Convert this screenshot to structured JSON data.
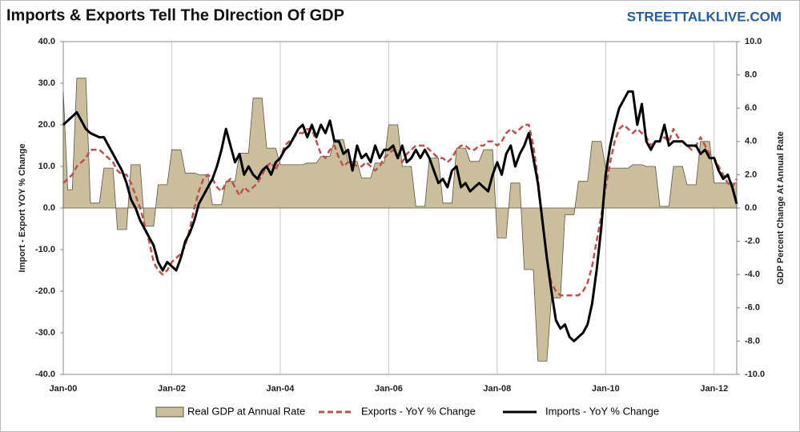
{
  "chart_data": {
    "type": "line",
    "title": "Imports & Exports Tell The DIrection Of GDP",
    "watermark": "STREETTALKLIVE.COM",
    "ylabel": "Import - Export YOY % Change",
    "y2label": "GDP Percent Change At Annual Rate",
    "grid": "x",
    "categories": [
      "Jan-00",
      null,
      null,
      null,
      null,
      null,
      null,
      null,
      null,
      null,
      null,
      null,
      null,
      null,
      null,
      null,
      null,
      null,
      null,
      null,
      null,
      null,
      null,
      null,
      "Jan-02",
      null,
      null,
      null,
      null,
      null,
      null,
      null,
      null,
      null,
      null,
      null,
      null,
      null,
      null,
      null,
      null,
      null,
      null,
      null,
      null,
      null,
      null,
      null,
      "Jan-04",
      null,
      null,
      null,
      null,
      null,
      null,
      null,
      null,
      null,
      null,
      null,
      null,
      null,
      null,
      null,
      null,
      null,
      null,
      null,
      null,
      null,
      null,
      null,
      "Jan-06",
      null,
      null,
      null,
      null,
      null,
      null,
      null,
      null,
      null,
      null,
      null,
      null,
      null,
      null,
      null,
      null,
      null,
      null,
      null,
      null,
      null,
      null,
      null,
      "Jan-08",
      null,
      null,
      null,
      null,
      null,
      null,
      null,
      null,
      null,
      null,
      null,
      null,
      null,
      null,
      null,
      null,
      null,
      null,
      null,
      null,
      null,
      null,
      null,
      "Jan-10",
      null,
      null,
      null,
      null,
      null,
      null,
      null,
      null,
      null,
      null,
      null,
      null,
      null,
      null,
      null,
      null,
      null,
      null,
      null,
      null,
      null,
      null,
      null,
      "Jan-12",
      null,
      null,
      null,
      null,
      null
    ],
    "ylim": [
      -40,
      40
    ],
    "yticks": [
      {
        "value": 40,
        "label": "40.0"
      },
      {
        "value": 30,
        "label": "30.0"
      },
      {
        "value": 20,
        "label": "20.0"
      },
      {
        "value": 10,
        "label": "10.0"
      },
      {
        "value": 0,
        "label": "0.0"
      },
      {
        "value": -10,
        "label": "-10.0"
      },
      {
        "value": -20,
        "label": "-20.0"
      },
      {
        "value": -30,
        "label": "-30.0"
      },
      {
        "value": -40,
        "label": "-40.0"
      }
    ],
    "y2lim": [
      -10,
      10
    ],
    "y2ticks": [
      {
        "value": 10,
        "label": "10.0"
      },
      {
        "value": 8,
        "label": "8.0"
      },
      {
        "value": 6,
        "label": "6.0"
      },
      {
        "value": 4,
        "label": "4.0"
      },
      {
        "value": 2,
        "label": "2.0"
      },
      {
        "value": 0,
        "label": "0.0"
      },
      {
        "value": -2,
        "label": "-2.0"
      },
      {
        "value": -4,
        "label": "-4.0"
      },
      {
        "value": -6,
        "label": "-6.0"
      },
      {
        "value": -8,
        "label": "-8.0"
      },
      {
        "value": -10,
        "label": "-10.0"
      }
    ],
    "series": [
      {
        "name": "Real GDP at Annual Rate",
        "type": "area",
        "axis": "y2",
        "color": "#cbbf9b",
        "values": [
          7.0,
          1.1,
          1.1,
          7.8,
          7.8,
          7.8,
          0.3,
          0.3,
          0.3,
          2.4,
          2.4,
          2.4,
          -1.3,
          -1.3,
          -1.3,
          2.6,
          2.6,
          2.6,
          -1.1,
          -1.1,
          -1.1,
          1.4,
          1.4,
          1.4,
          3.5,
          3.5,
          3.5,
          2.1,
          2.1,
          2.1,
          2.0,
          2.0,
          2.0,
          0.2,
          0.2,
          0.2,
          1.6,
          1.6,
          1.6,
          3.3,
          3.3,
          3.3,
          6.6,
          6.6,
          6.6,
          3.6,
          3.6,
          3.6,
          2.6,
          2.6,
          2.6,
          2.6,
          2.6,
          2.6,
          2.7,
          2.7,
          2.7,
          3.1,
          3.1,
          3.1,
          4.1,
          4.1,
          4.1,
          2.8,
          2.8,
          2.8,
          1.8,
          1.8,
          1.8,
          2.7,
          2.7,
          2.7,
          5.0,
          5.0,
          5.0,
          2.5,
          2.5,
          2.5,
          0.1,
          0.1,
          0.1,
          3.0,
          3.0,
          3.0,
          0.3,
          0.3,
          0.3,
          3.6,
          3.6,
          3.6,
          2.8,
          2.8,
          2.8,
          3.5,
          3.5,
          3.5,
          -1.8,
          -1.8,
          -1.8,
          1.5,
          1.5,
          1.5,
          -3.7,
          -3.7,
          -3.7,
          -9.2,
          -9.2,
          -9.2,
          -5.4,
          -5.4,
          -5.4,
          -0.4,
          -0.4,
          -0.4,
          1.6,
          1.6,
          1.6,
          4.0,
          4.0,
          4.0,
          2.4,
          2.4,
          2.4,
          2.4,
          2.4,
          2.4,
          2.6,
          2.6,
          2.6,
          2.5,
          2.5,
          2.5,
          0.1,
          0.1,
          0.1,
          2.5,
          2.5,
          2.5,
          1.4,
          1.4,
          1.4,
          4.0,
          4.0,
          4.0,
          1.5,
          1.5,
          1.5,
          1.5,
          1.5,
          1.5
        ]
      },
      {
        "name": "Exports - YoY % Change",
        "type": "line",
        "dash": true,
        "color": "#c0504d",
        "values": [
          6,
          7,
          8,
          10,
          11,
          12,
          14,
          14,
          14,
          13,
          12,
          11,
          9,
          8,
          8,
          6,
          3,
          0,
          -4,
          -8,
          -13,
          -15,
          -16,
          -15,
          -13,
          -12,
          -11,
          -9,
          -5,
          0,
          4,
          7,
          8,
          7,
          5,
          4,
          6,
          7,
          5,
          3,
          5,
          4,
          5,
          6,
          8,
          10,
          11,
          9,
          12,
          15,
          16,
          17,
          18,
          18,
          19,
          19,
          16,
          13,
          12,
          14,
          15,
          12,
          10,
          11,
          11,
          10,
          10,
          11,
          10,
          9,
          10,
          12,
          13,
          14,
          12,
          11,
          13,
          14,
          15,
          15,
          15,
          14,
          13,
          12,
          12,
          11,
          12,
          14,
          15,
          15,
          14,
          14,
          15,
          15,
          16,
          16,
          15,
          16,
          18,
          19,
          18,
          19,
          20,
          20,
          15,
          7,
          -3,
          -12,
          -18,
          -20,
          -21,
          -21,
          -21,
          -21,
          -21,
          -20,
          -18,
          -14,
          -8,
          -2,
          5,
          11,
          16,
          19,
          20,
          19,
          18,
          19,
          18,
          17,
          15,
          16,
          16,
          17,
          16,
          19,
          17,
          16,
          15,
          14,
          15,
          17,
          15,
          13,
          12,
          10,
          8,
          6,
          5,
          7
        ]
      },
      {
        "name": "Imports - YoY % Change",
        "type": "line",
        "dash": false,
        "color": "#000000",
        "values": [
          20,
          21,
          22,
          23,
          21,
          19,
          18,
          17.5,
          17,
          17,
          15,
          13,
          11,
          9,
          6,
          2,
          0,
          -3,
          -5,
          -7,
          -9,
          -13,
          -15,
          -13,
          -14,
          -15,
          -12,
          -8,
          -6,
          -3,
          1,
          3,
          5,
          7,
          10,
          14,
          19,
          15,
          11,
          13,
          8,
          10,
          8,
          7,
          9,
          10,
          8,
          11,
          12,
          14,
          15,
          17,
          19,
          20,
          17,
          20,
          17,
          20,
          18,
          21,
          16,
          16,
          13,
          14,
          9,
          15,
          12,
          13,
          11,
          15,
          12,
          14,
          14,
          15,
          12,
          15,
          11,
          12,
          14,
          12,
          14,
          12,
          9,
          6,
          7,
          5,
          9,
          10,
          5,
          6,
          4,
          5,
          6,
          5,
          4,
          8,
          11,
          8,
          13,
          15,
          10,
          13,
          15,
          18,
          12,
          6,
          -3,
          -12,
          -20,
          -27,
          -29,
          -28,
          -31,
          -32,
          -31,
          -30,
          -28,
          -23,
          -15,
          -5,
          8,
          15,
          20,
          24,
          26,
          28,
          28,
          20,
          25,
          16,
          14,
          16,
          16,
          20,
          15,
          16,
          16,
          16,
          15,
          15,
          15,
          13,
          14,
          12,
          12,
          9,
          7,
          8,
          5,
          1
        ]
      }
    ]
  }
}
